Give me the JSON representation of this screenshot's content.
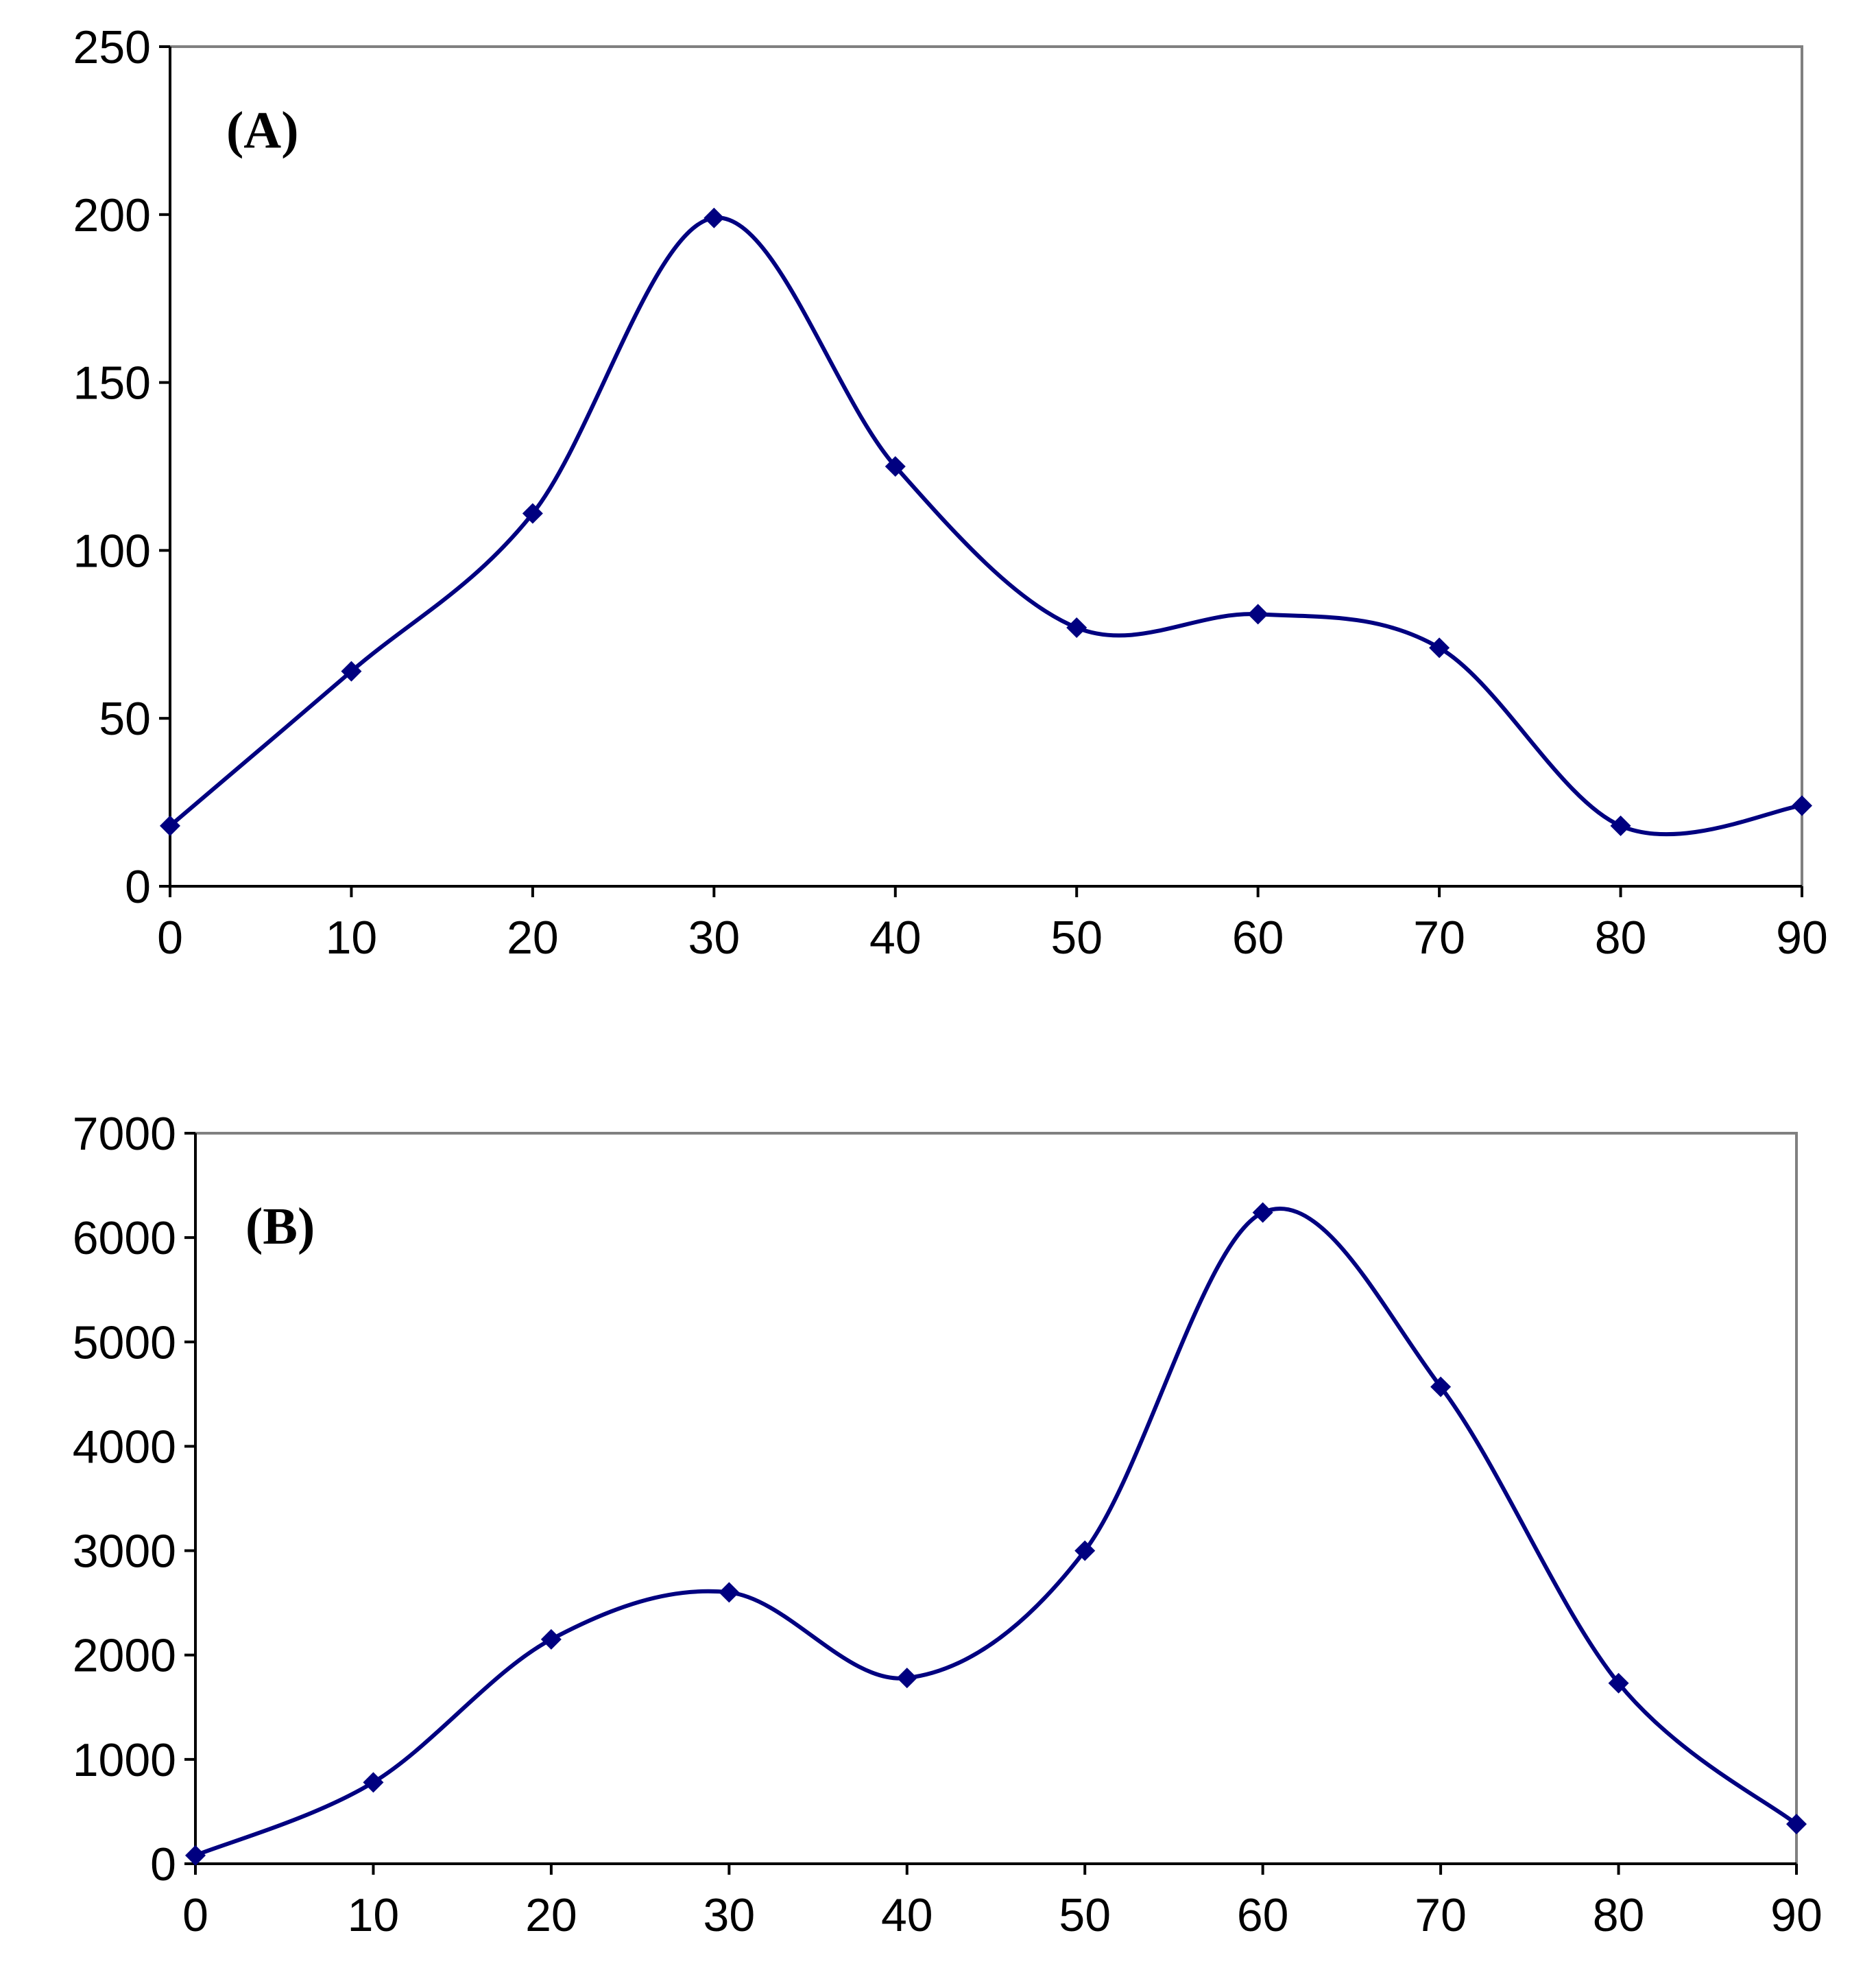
{
  "colors": {
    "series": "#000080",
    "frame": "#808080",
    "axis": "#000000"
  },
  "chart_data": [
    {
      "type": "line",
      "title": "",
      "panel_label": "(A)",
      "xlabel": "",
      "ylabel": "",
      "xlim": [
        0,
        90
      ],
      "ylim": [
        0,
        250
      ],
      "xticks": [
        0,
        10,
        20,
        30,
        40,
        50,
        60,
        70,
        80,
        90
      ],
      "yticks": [
        0,
        50,
        100,
        150,
        200,
        250
      ],
      "xtick_labels": [
        "0",
        "10",
        "20",
        "30",
        "40",
        "50",
        "60",
        "70",
        "80",
        "90"
      ],
      "ytick_labels": [
        "0",
        "50",
        "100",
        "150",
        "200",
        "250"
      ],
      "grid": false,
      "smooth": true,
      "marker": "diamond",
      "series": [
        {
          "name": "A",
          "x": [
            0,
            10,
            20,
            30,
            40,
            50,
            60,
            70,
            80,
            90
          ],
          "values": [
            18,
            64,
            111,
            199,
            125,
            77,
            81,
            71,
            18,
            24
          ]
        }
      ]
    },
    {
      "type": "line",
      "title": "",
      "panel_label": "(B)",
      "xlabel": "",
      "ylabel": "",
      "xlim": [
        0,
        90
      ],
      "ylim": [
        0,
        7000
      ],
      "xticks": [
        0,
        10,
        20,
        30,
        40,
        50,
        60,
        70,
        80,
        90
      ],
      "yticks": [
        0,
        1000,
        2000,
        3000,
        4000,
        5000,
        6000,
        7000
      ],
      "xtick_labels": [
        "0",
        "10",
        "20",
        "30",
        "40",
        "50",
        "60",
        "70",
        "80",
        "90"
      ],
      "ytick_labels": [
        "0",
        "1000",
        "2000",
        "3000",
        "4000",
        "5000",
        "6000",
        "7000"
      ],
      "grid": false,
      "smooth": true,
      "marker": "diamond",
      "series": [
        {
          "name": "B",
          "x": [
            0,
            10,
            20,
            30,
            40,
            50,
            60,
            70,
            80,
            90
          ],
          "values": [
            80,
            780,
            2150,
            2600,
            1780,
            3000,
            6240,
            4570,
            1730,
            380
          ]
        }
      ]
    }
  ]
}
